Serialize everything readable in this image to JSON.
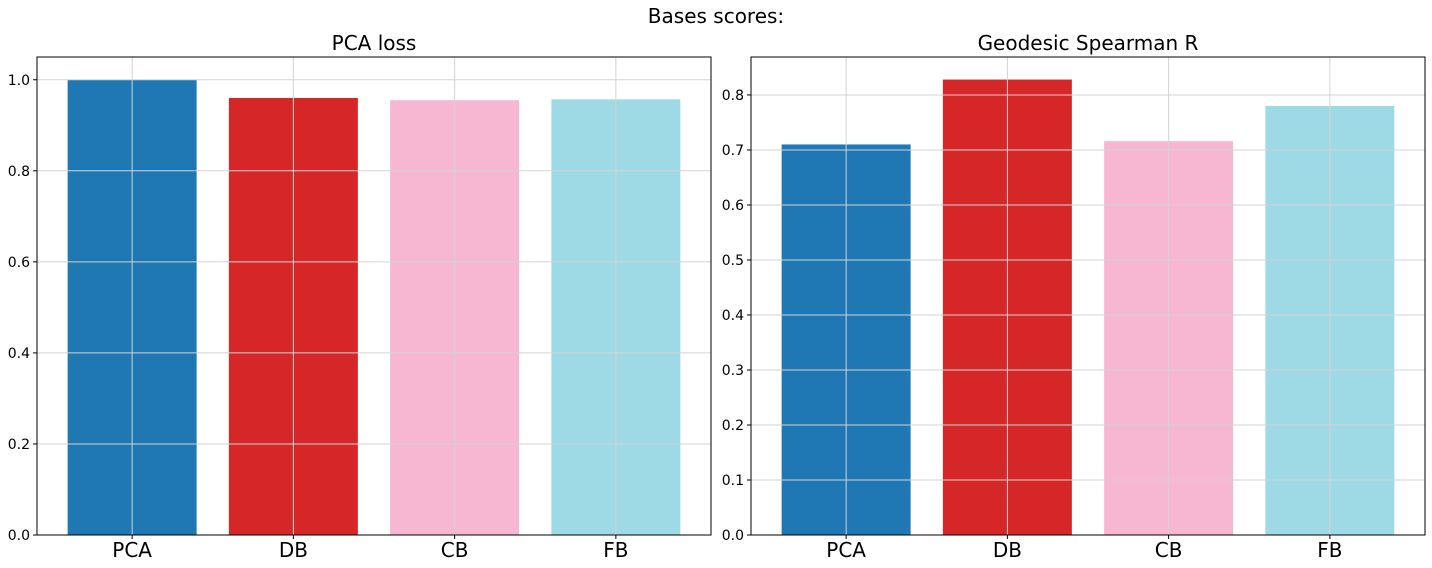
{
  "suptitle": "Bases scores:",
  "chart_data": [
    {
      "type": "bar",
      "title": "PCA loss",
      "categories": [
        "PCA",
        "DB",
        "CB",
        "FB"
      ],
      "values": [
        1.0,
        0.96,
        0.955,
        0.957
      ],
      "colors": [
        "#1f77b4",
        "#d62728",
        "#f7b6d2",
        "#9edae5"
      ],
      "ylim": [
        0,
        1.05
      ],
      "yticks": [
        0.0,
        0.2,
        0.4,
        0.6,
        0.8,
        1.0
      ],
      "ytick_labels": [
        "0.0",
        "0.2",
        "0.4",
        "0.6",
        "0.8",
        "1.0"
      ],
      "grid": true,
      "xlabel": "",
      "ylabel": ""
    },
    {
      "type": "bar",
      "title": "Geodesic Spearman R",
      "categories": [
        "PCA",
        "DB",
        "CB",
        "FB"
      ],
      "values": [
        0.71,
        0.828,
        0.716,
        0.78
      ],
      "colors": [
        "#1f77b4",
        "#d62728",
        "#f7b6d2",
        "#9edae5"
      ],
      "ylim": [
        0,
        0.869
      ],
      "yticks": [
        0.0,
        0.1,
        0.2,
        0.3,
        0.4,
        0.5,
        0.6,
        0.7,
        0.8
      ],
      "ytick_labels": [
        "0.0",
        "0.1",
        "0.2",
        "0.3",
        "0.4",
        "0.5",
        "0.6",
        "0.7",
        "0.8"
      ],
      "grid": true,
      "xlabel": "",
      "ylabel": ""
    }
  ]
}
